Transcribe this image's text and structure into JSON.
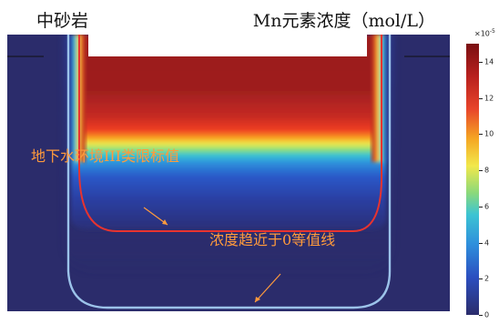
{
  "labels": {
    "rock": "中砂岩",
    "title": "Mn元素浓度（mol/L）",
    "annot_limit": "地下水环境III类限标值",
    "annot_zero": "浓度趋近于0等值线"
  },
  "colorbar": {
    "exponent_base": "×10",
    "exponent_power": "-5",
    "ticks": [
      "14",
      "12",
      "10",
      "8",
      "6",
      "4",
      "2",
      "0"
    ],
    "tick_values": [
      14,
      12,
      10,
      8,
      6,
      4,
      2,
      0
    ],
    "max": 15,
    "min": 0
  },
  "colors": {
    "background": "#2b2c6b",
    "limit_contour": "#e8332f",
    "zero_contour": "#9cc3ea",
    "annotation": "#ff9a3c"
  }
}
